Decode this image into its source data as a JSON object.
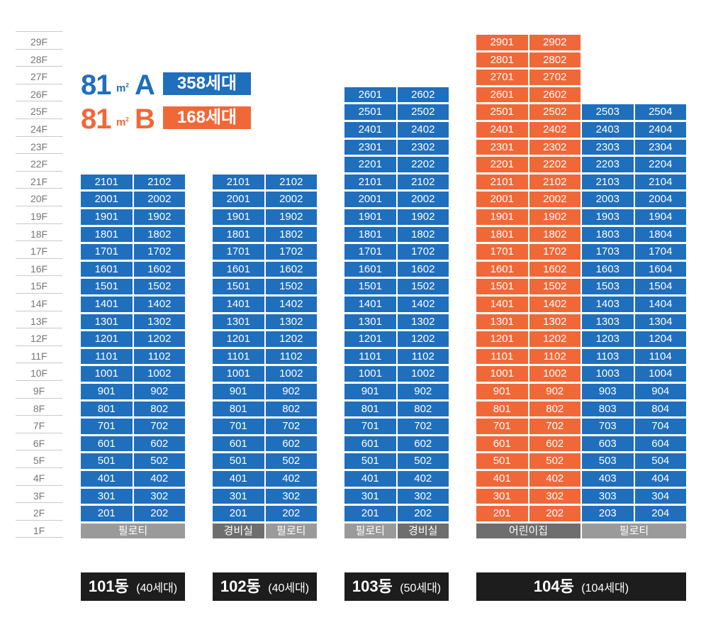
{
  "floors": [
    "29F",
    "28F",
    "27F",
    "26F",
    "25F",
    "24F",
    "23F",
    "22F",
    "21F",
    "20F",
    "19F",
    "18F",
    "17F",
    "16F",
    "15F",
    "14F",
    "13F",
    "12F",
    "11F",
    "10F",
    "9F",
    "8F",
    "7F",
    "6F",
    "5F",
    "4F",
    "3F",
    "2F",
    "1F"
  ],
  "legend": [
    {
      "size": "81",
      "unit": "m",
      "sup": "2",
      "type": "A",
      "count": "358세대",
      "color": "#1f6fbd"
    },
    {
      "size": "81",
      "unit": "m",
      "sup": "2",
      "type": "B",
      "count": "168세대",
      "color": "#f06838"
    }
  ],
  "buildings": [
    {
      "name": "101동",
      "count_label": "(40세대)",
      "top_floor": 21,
      "lines": [
        "01",
        "02"
      ],
      "ground": [
        {
          "text": "필로티",
          "span": 2,
          "tone": "light"
        }
      ]
    },
    {
      "name": "102동",
      "count_label": "(40세대)",
      "top_floor": 21,
      "lines": [
        "01",
        "02"
      ],
      "ground": [
        {
          "text": "경비실",
          "span": 1,
          "tone": "dark"
        },
        {
          "text": "필로티",
          "span": 1,
          "tone": "light"
        }
      ]
    },
    {
      "name": "103동",
      "count_label": "(50세대)",
      "top_floor": 26,
      "lines": [
        "01",
        "02"
      ],
      "ground": [
        {
          "text": "필로티",
          "span": 1,
          "tone": "light"
        },
        {
          "text": "경비실",
          "span": 1,
          "tone": "dark"
        }
      ]
    },
    {
      "name": "104동",
      "count_label": "(104세대)",
      "top_floor": 29,
      "lines": [
        "01",
        "02",
        "03",
        "04"
      ],
      "line_top_floors": [
        29,
        29,
        25,
        25
      ],
      "type_b_lines": [
        "01",
        "02"
      ],
      "ground": [
        {
          "text": "어린이집",
          "span": 2,
          "tone": "dark"
        },
        {
          "text": "필로티",
          "span": 2,
          "tone": "light"
        }
      ]
    }
  ]
}
